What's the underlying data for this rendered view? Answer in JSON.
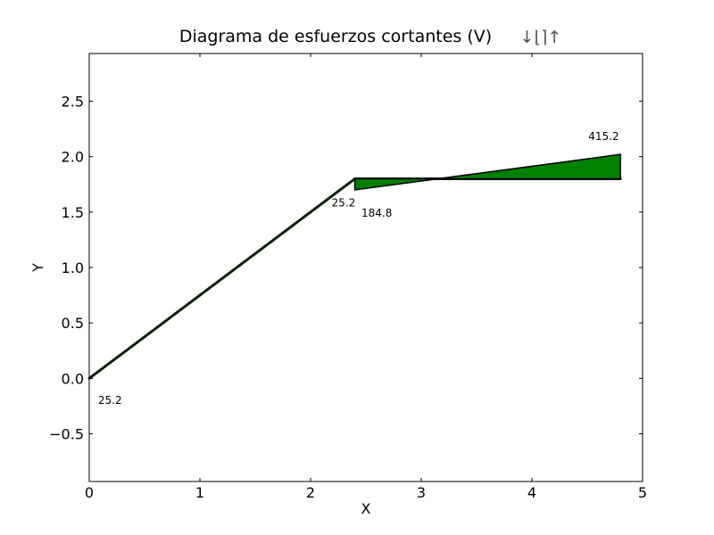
{
  "chart_data": {
    "type": "line",
    "title": "Diagrama de esfuerzos cortantes (V)",
    "title_symbols": "↓⌊⌉↑",
    "xlabel": "X",
    "ylabel": "Y",
    "xlim": [
      0,
      5
    ],
    "ylim": [
      -0.93,
      2.93
    ],
    "xticks": [
      0,
      1,
      2,
      3,
      4,
      5
    ],
    "xtick_labels": [
      "0",
      "1",
      "2",
      "3",
      "4",
      "5"
    ],
    "yticks": [
      -0.5,
      0.0,
      0.5,
      1.0,
      1.5,
      2.0,
      2.5
    ],
    "ytick_labels": [
      "−0.5",
      "0.0",
      "0.5",
      "1.0",
      "1.5",
      "2.0",
      "2.5"
    ],
    "grid": false,
    "fill_color": "#008000",
    "line_color": "#000000",
    "member_line_color": "#0a1f0a",
    "members": [
      {
        "name": "inclined",
        "x": [
          0.0,
          2.4
        ],
        "y": [
          0.0,
          1.8
        ]
      },
      {
        "name": "horizontal",
        "x": [
          2.4,
          4.8
        ],
        "y": [
          1.8,
          1.8
        ]
      }
    ],
    "fill_polygon": {
      "x": [
        2.4,
        4.8,
        4.8,
        2.4
      ],
      "y": [
        1.8,
        1.8,
        2.02,
        1.7
      ]
    },
    "annotations": [
      {
        "text": "25.2",
        "x": 0.08,
        "y": -0.23
      },
      {
        "text": "25.2",
        "x": 2.19,
        "y": 1.55
      },
      {
        "text": "184.8",
        "x": 2.46,
        "y": 1.46
      },
      {
        "text": "415.2",
        "x": 4.51,
        "y": 2.15
      }
    ]
  }
}
